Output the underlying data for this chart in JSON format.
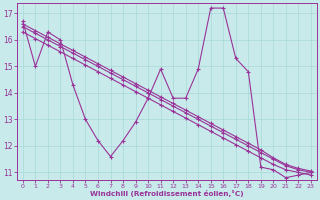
{
  "xlabel": "Windchill (Refroidissement éolien,°C)",
  "xlim": [
    -0.5,
    23.5
  ],
  "ylim": [
    10.7,
    17.4
  ],
  "xticks": [
    0,
    1,
    2,
    3,
    4,
    5,
    6,
    7,
    8,
    9,
    10,
    11,
    12,
    13,
    14,
    15,
    16,
    17,
    18,
    19,
    20,
    21,
    22,
    23
  ],
  "yticks": [
    11,
    12,
    13,
    14,
    15,
    16,
    17
  ],
  "bg_color": "#c8eaea",
  "grid_color": "#a8d8d8",
  "line_color": "#993399",
  "line_jagged": [
    16.7,
    15.0,
    16.3,
    16.0,
    14.3,
    13.0,
    12.2,
    11.6,
    12.2,
    12.9,
    13.8,
    14.9,
    13.8,
    13.8,
    14.9,
    17.2,
    17.2,
    15.3,
    14.8,
    11.2,
    11.1,
    10.8,
    10.9,
    11.0
  ],
  "line_straight1": [
    16.5,
    16.25,
    16.0,
    15.75,
    15.5,
    15.25,
    15.0,
    14.75,
    14.5,
    14.25,
    14.0,
    13.75,
    13.5,
    13.25,
    13.0,
    12.75,
    12.5,
    12.25,
    12.0,
    11.75,
    11.5,
    11.25,
    11.1,
    11.0
  ],
  "line_straight2": [
    16.3,
    16.05,
    15.8,
    15.55,
    15.3,
    15.05,
    14.8,
    14.55,
    14.3,
    14.05,
    13.8,
    13.55,
    13.3,
    13.05,
    12.8,
    12.55,
    12.3,
    12.05,
    11.8,
    11.55,
    11.3,
    11.1,
    11.0,
    10.9
  ],
  "line_straight3": [
    16.6,
    16.35,
    16.1,
    15.85,
    15.6,
    15.35,
    15.1,
    14.85,
    14.6,
    14.35,
    14.1,
    13.85,
    13.6,
    13.35,
    13.1,
    12.85,
    12.6,
    12.35,
    12.1,
    11.85,
    11.55,
    11.3,
    11.15,
    11.05
  ]
}
